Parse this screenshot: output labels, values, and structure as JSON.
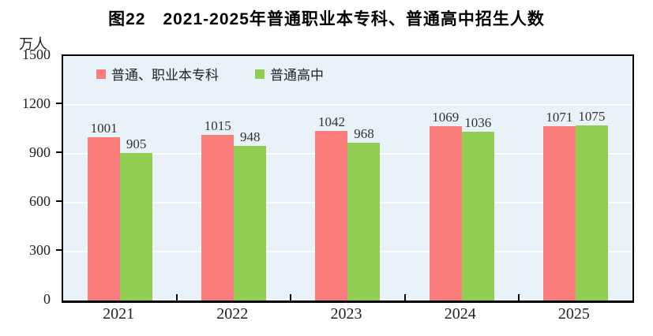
{
  "title": "图22　2021-2025年普通职业本专科、普通高中招生人数",
  "unit_label": "万人",
  "chart_data": {
    "type": "bar",
    "title": "图22　2021-2025年普通职业本专科、普通高中招生人数",
    "ylabel": "万人",
    "xlabel": "",
    "categories": [
      "2021",
      "2022",
      "2023",
      "2024",
      "2025"
    ],
    "series": [
      {
        "name": "普通、职业本专科",
        "color": "#fb7d7b",
        "values": [
          1001,
          1015,
          1042,
          1069,
          1071
        ]
      },
      {
        "name": "普通高中",
        "color": "#90ce51",
        "values": [
          905,
          948,
          968,
          1036,
          1075
        ]
      }
    ],
    "ylim": [
      0,
      1500
    ],
    "y_ticks": [
      0,
      300,
      600,
      900,
      1200,
      1500
    ],
    "grid": "horizontal white lines at ticks",
    "legend_position": "top-left inside plot",
    "plot_background": "#e9f2f8",
    "axis_color": "#000000"
  }
}
